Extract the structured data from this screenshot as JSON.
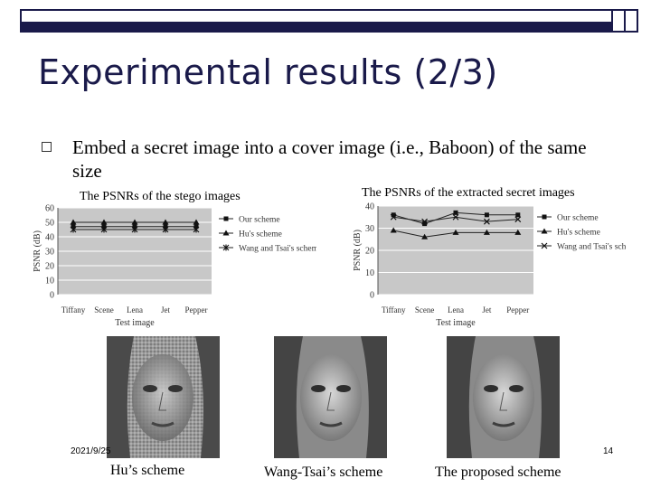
{
  "slide": {
    "title": "Experimental results (2/3)",
    "bullet": "Embed a secret image into a cover image (i.e., Baboon) of the same size",
    "date": "2021/9/25",
    "page_number": "14",
    "captions": [
      "Hu’s scheme",
      "Wang-Tsai’s scheme",
      "The proposed scheme"
    ],
    "colors": {
      "title": "#1a1a4a",
      "bar": "#1a1a4a"
    }
  },
  "chart_data": [
    {
      "type": "line",
      "title": "The PSNRs of the stego images",
      "xlabel": "Test image",
      "ylabel": "PSNR (dB)",
      "categories": [
        "Tiffany",
        "Scene",
        "Lena",
        "Jet",
        "Pepper"
      ],
      "ylim": [
        0,
        60
      ],
      "yticks": [
        0,
        10,
        20,
        30,
        40,
        50,
        60
      ],
      "grid": true,
      "legend": "right",
      "series": [
        {
          "name": "Our scheme",
          "marker": "square",
          "values": [
            47,
            47,
            47,
            47,
            47
          ]
        },
        {
          "name": "Hu's scheme",
          "marker": "triangle",
          "values": [
            50,
            50,
            50,
            50,
            50
          ]
        },
        {
          "name": "Wang and Tsai's scheme",
          "marker": "asterisk",
          "values": [
            45,
            45,
            45,
            45,
            45
          ]
        }
      ]
    },
    {
      "type": "line",
      "title": "The PSNRs of the extracted secret images",
      "xlabel": "Test image",
      "ylabel": "PSNR (dB)",
      "categories": [
        "Tiffany",
        "Scene",
        "Lena",
        "Jet",
        "Pepper"
      ],
      "ylim": [
        0,
        40
      ],
      "yticks": [
        0,
        10,
        20,
        30,
        40
      ],
      "grid": true,
      "legend": "right",
      "series": [
        {
          "name": "Our scheme",
          "marker": "square",
          "values": [
            36,
            32,
            37,
            36,
            36
          ]
        },
        {
          "name": "Hu's scheme",
          "marker": "triangle",
          "values": [
            29,
            26,
            28,
            28,
            28
          ]
        },
        {
          "name": "Wang and Tsai's scheme",
          "marker": "x",
          "values": [
            35,
            33,
            35,
            33,
            34
          ]
        }
      ]
    }
  ]
}
